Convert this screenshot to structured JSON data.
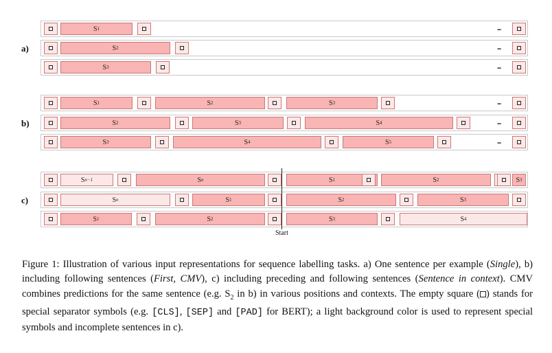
{
  "panels": [
    {
      "label": "a)",
      "rows": [
        {
          "blocks": [
            {
              "t": "sep",
              "l": 4
            },
            {
              "t": "s",
              "l": 28,
              "w": 105,
              "base": "S",
              "sub": "1"
            },
            {
              "t": "sep",
              "l": 140
            }
          ],
          "dots": true,
          "end": "sep"
        },
        {
          "blocks": [
            {
              "t": "sep",
              "l": 4
            },
            {
              "t": "s",
              "l": 28,
              "w": 160,
              "base": "S",
              "sub": "2"
            },
            {
              "t": "sep",
              "l": 195
            }
          ],
          "dots": true,
          "end": "sep"
        },
        {
          "blocks": [
            {
              "t": "sep",
              "l": 4
            },
            {
              "t": "s",
              "l": 28,
              "w": 132,
              "base": "S",
              "sub": "3"
            },
            {
              "t": "sep",
              "l": 167
            }
          ],
          "dots": true,
          "end": "sep"
        }
      ]
    },
    {
      "label": "b)",
      "rows": [
        {
          "blocks": [
            {
              "t": "sep",
              "l": 4
            },
            {
              "t": "s",
              "l": 28,
              "w": 105,
              "base": "S",
              "sub": "1"
            },
            {
              "t": "sep",
              "l": 140
            },
            {
              "t": "s",
              "l": 166,
              "w": 160,
              "base": "S",
              "sub": "2"
            },
            {
              "t": "sep",
              "l": 330
            },
            {
              "t": "s",
              "l": 357,
              "w": 133,
              "base": "S",
              "sub": "3"
            },
            {
              "t": "sep",
              "l": 495
            }
          ],
          "dots": true,
          "end": "sep"
        },
        {
          "blocks": [
            {
              "t": "sep",
              "l": 4
            },
            {
              "t": "s",
              "l": 28,
              "w": 160,
              "base": "S",
              "sub": "2"
            },
            {
              "t": "sep",
              "l": 195
            },
            {
              "t": "s",
              "l": 220,
              "w": 133,
              "base": "S",
              "sub": "3"
            },
            {
              "t": "sep",
              "l": 358
            },
            {
              "t": "s",
              "l": 384,
              "w": 216,
              "base": "S",
              "sub": "4"
            },
            {
              "t": "sep",
              "l": 605
            }
          ],
          "dots": true,
          "end": "sep"
        },
        {
          "blocks": [
            {
              "t": "sep",
              "l": 4
            },
            {
              "t": "s",
              "l": 28,
              "w": 132,
              "base": "S",
              "sub": "3"
            },
            {
              "t": "sep",
              "l": 166
            },
            {
              "t": "s",
              "l": 192,
              "w": 216,
              "base": "S",
              "sub": "4"
            },
            {
              "t": "sep",
              "l": 413
            },
            {
              "t": "s",
              "l": 439,
              "w": 133,
              "base": "S",
              "sub": "5"
            },
            {
              "t": "sep",
              "l": 577
            }
          ],
          "dots": true,
          "end": "sep"
        }
      ]
    },
    {
      "label": "c)",
      "rows": [
        {
          "blocks": [
            {
              "t": "sep",
              "l": 4
            },
            {
              "t": "sl",
              "l": 28,
              "w": 77,
              "base": "S",
              "sub": "n−1",
              "italic": true
            },
            {
              "t": "sep",
              "l": 111
            },
            {
              "t": "s",
              "l": 138,
              "w": 188,
              "base": "S",
              "sub": "n",
              "italic": true
            },
            {
              "t": "sep",
              "l": 330
            },
            {
              "t": "s",
              "l": 357,
              "w": 133,
              "base": "S",
              "sub": "1"
            },
            {
              "t": "sep",
              "l": 467
            },
            {
              "t": "s",
              "l": 495,
              "w": 160,
              "base": "S",
              "sub": "2"
            },
            {
              "t": "sep",
              "l": 660
            }
          ],
          "dots": false,
          "end": "s3"
        },
        {
          "blocks": [
            {
              "t": "sep",
              "l": 4
            },
            {
              "t": "sl",
              "l": 28,
              "w": 160,
              "base": "S",
              "sub": "n",
              "italic": true
            },
            {
              "t": "sep",
              "l": 195
            },
            {
              "t": "s",
              "l": 220,
              "w": 106,
              "base": "S",
              "sub": "1"
            },
            {
              "t": "sep",
              "l": 330
            },
            {
              "t": "s",
              "l": 357,
              "w": 160,
              "base": "S",
              "sub": "2"
            },
            {
              "t": "sep",
              "l": 522
            },
            {
              "t": "s",
              "l": 548,
              "w": 133,
              "base": "S",
              "sub": "3"
            }
          ],
          "dots": false,
          "end": "sep"
        },
        {
          "blocks": [
            {
              "t": "sep",
              "l": 4
            },
            {
              "t": "s",
              "l": 28,
              "w": 104,
              "base": "S",
              "sub": "1"
            },
            {
              "t": "sep",
              "l": 139
            },
            {
              "t": "s",
              "l": 166,
              "w": 160,
              "base": "S",
              "sub": "2"
            },
            {
              "t": "sep",
              "l": 330
            },
            {
              "t": "s",
              "l": 357,
              "w": 133,
              "base": "S",
              "sub": "3"
            },
            {
              "t": "sep",
              "l": 495
            },
            {
              "t": "sl",
              "l": 522,
              "w": 186,
              "base": "S",
              "sub": "4"
            }
          ],
          "dots": false,
          "end": "none"
        }
      ]
    }
  ],
  "dots_text": "...",
  "c_row0_end_label": "S",
  "c_row0_end_sub": "3",
  "start_label": "Start",
  "caption": [
    {
      "k": "t",
      "v": "Figure 1: Illustration of various input representations for sequence labelling tasks. a) One sentence per example ("
    },
    {
      "k": "i",
      "v": "Single"
    },
    {
      "k": "t",
      "v": "), b) including following sentences ("
    },
    {
      "k": "i",
      "v": "First, CMV"
    },
    {
      "k": "t",
      "v": "), c) including preceding and following sentences ("
    },
    {
      "k": "i",
      "v": "Sentence in context"
    },
    {
      "k": "t",
      "v": "). CMV combines predictions for the same sentence (e.g. S"
    },
    {
      "k": "sub",
      "v": "2"
    },
    {
      "k": "t",
      "v": " in b) in various positions and contexts. The empty square ("
    },
    {
      "k": "box",
      "v": ""
    },
    {
      "k": "t",
      "v": ") stands for special separator symbols (e.g. "
    },
    {
      "k": "m",
      "v": "[CLS]"
    },
    {
      "k": "t",
      "v": ", "
    },
    {
      "k": "m",
      "v": "[SEP]"
    },
    {
      "k": "t",
      "v": " and "
    },
    {
      "k": "m",
      "v": "[PAD]"
    },
    {
      "k": "t",
      "v": " for BERT); a light background color is used to represent special symbols and incomplete sentences in c)."
    }
  ]
}
